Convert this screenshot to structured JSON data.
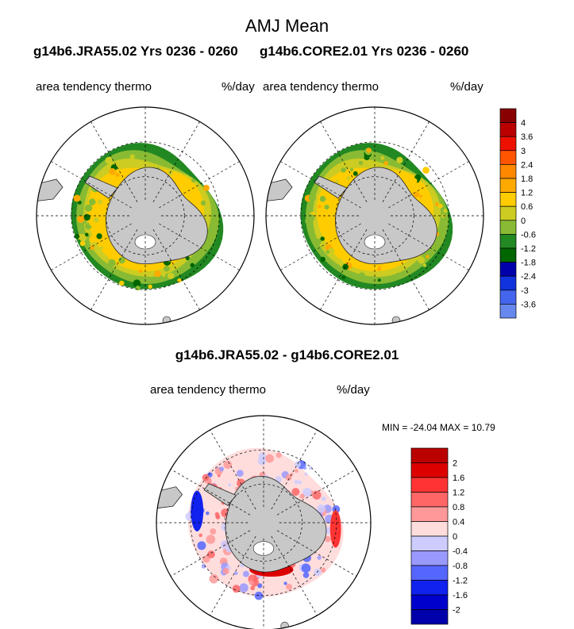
{
  "figure": {
    "title": "AMJ Mean",
    "left_case": "g14b6.JRA55.02  Yrs 0236 - 0260",
    "right_case": "g14b6.CORE2.01  Yrs 0236 - 0260",
    "variable": "area tendency thermo",
    "units": "%/day",
    "diff_title": "g14b6.JRA55.02 - g14b6.CORE2.01",
    "min_max": "MIN = -24.04 MAX =  10.79"
  },
  "colors": {
    "land": "#c8c8c8",
    "abs_bins": [
      "#ee66dd",
      "#9966cc",
      "#6688ee",
      "#4466ee",
      "#1133dd",
      "#0000aa",
      "#006600",
      "#228822",
      "#88bb33",
      "#cccc22",
      "#ffcc00",
      "#ffaa00",
      "#ff8800",
      "#ff5500",
      "#ee1100",
      "#bb0000",
      "#880000"
    ],
    "diff_bins": [
      "#000077",
      "#0000aa",
      "#0000cc",
      "#1122ee",
      "#5566ff",
      "#9999ff",
      "#ccccff",
      "#ffdddd",
      "#ff9999",
      "#ff6666",
      "#ff3333",
      "#dd0000",
      "#bb0000",
      "#880000"
    ]
  },
  "chart_data": [
    {
      "type": "heatmap",
      "projection": "south-polar-stereographic",
      "title": "g14b6.JRA55.02  Yrs 0236 - 0260",
      "variable": "area tendency thermo",
      "units": "%/day",
      "colorbar_levels": [
        -3.6,
        -3,
        -2.4,
        -1.8,
        -1.2,
        -0.6,
        0,
        0.6,
        1.2,
        1.8,
        2.4,
        3,
        3.6,
        4
      ]
    },
    {
      "type": "heatmap",
      "projection": "south-polar-stereographic",
      "title": "g14b6.CORE2.01  Yrs 0236 - 0260",
      "variable": "area tendency thermo",
      "units": "%/day",
      "colorbar_levels": [
        -3.6,
        -3,
        -2.4,
        -1.8,
        -1.2,
        -0.6,
        0,
        0.6,
        1.2,
        1.8,
        2.4,
        3,
        3.6,
        4
      ]
    },
    {
      "type": "heatmap",
      "projection": "south-polar-stereographic",
      "title": "g14b6.JRA55.02 - g14b6.CORE2.01",
      "variable": "area tendency thermo",
      "units": "%/day",
      "min": -24.04,
      "max": 10.79,
      "colorbar_levels": [
        -2,
        -1.6,
        -1.2,
        -0.8,
        -0.4,
        0,
        0.4,
        0.8,
        1.2,
        1.6,
        2
      ]
    }
  ]
}
